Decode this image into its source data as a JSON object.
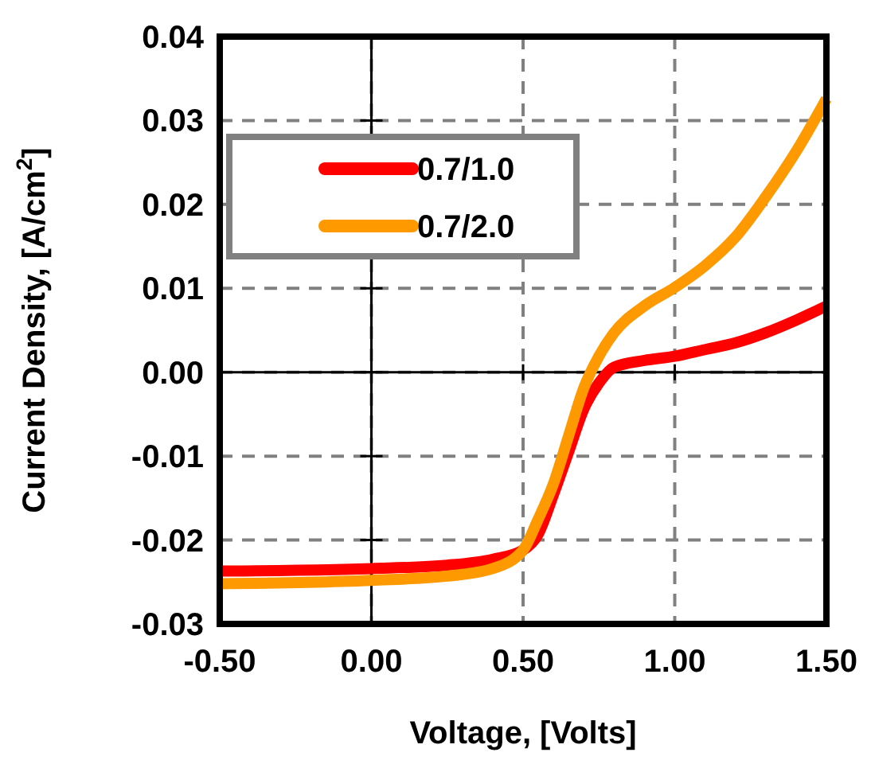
{
  "chart_data": {
    "type": "line",
    "xlabel": "Voltage, [Volts]",
    "ylabel": "Current Density, [A/cm$^{2}$]",
    "xlim": [
      -0.5,
      1.5
    ],
    "ylim": [
      -0.03,
      0.04
    ],
    "xticks": [
      {
        "value": -0.5,
        "label": "-0.50"
      },
      {
        "value": 0,
        "label": "0.00"
      },
      {
        "value": 0.5,
        "label": "0.50"
      },
      {
        "value": 1,
        "label": "1.00"
      },
      {
        "value": 1.5,
        "label": "1.50"
      }
    ],
    "yticks": [
      -0.03,
      -0.02,
      -0.01,
      {
        "value": 0,
        "label": "0.00"
      },
      0.01,
      0.02,
      0.03,
      0.04
    ],
    "grid": true,
    "legend": "top left",
    "line_style": "solid",
    "marker": "none",
    "x": [
      -0.5,
      0,
      0.25,
      0.4,
      0.5,
      0.55,
      0.6,
      0.65,
      0.7,
      0.75,
      0.8,
      0.9,
      1.0,
      1.1,
      1.2,
      1.3,
      1.4,
      1.5
    ],
    "series": [
      {
        "name": "0.7/1.0",
        "color": "#ff0000",
        "values": [
          -0.0237,
          -0.0234,
          -0.023,
          -0.0223,
          -0.0212,
          -0.0193,
          -0.0146,
          -0.0095,
          -0.0044,
          -0.0013,
          0.0006,
          0.0014,
          0.0019,
          0.0027,
          0.0035,
          0.0047,
          0.0062,
          0.0079
        ]
      },
      {
        "name": "0.7/2.0",
        "color": "#ff9900",
        "values": [
          -0.0252,
          -0.0248,
          -0.0243,
          -0.0234,
          -0.0212,
          -0.0175,
          -0.0133,
          -0.0076,
          -0.0019,
          0.0019,
          0.0047,
          0.0079,
          0.0101,
          0.0127,
          0.0161,
          0.0209,
          0.0263,
          0.0326
        ]
      }
    ]
  }
}
